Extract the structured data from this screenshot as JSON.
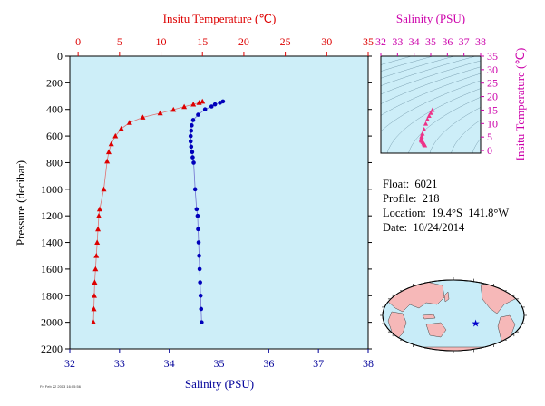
{
  "chart_data": [
    {
      "type": "scatter",
      "name": "profile",
      "ylabel": "Pressure (decibar)",
      "y_ticks": [
        0,
        200,
        400,
        600,
        800,
        1000,
        1200,
        1400,
        1600,
        1800,
        2000,
        2200
      ],
      "ylim": [
        2200,
        0
      ],
      "y_inverted": true,
      "temperature_axis": {
        "label": "Insitu Temperature (℃)",
        "position": "top",
        "color": "#dd0000",
        "ticks": [
          0,
          5,
          10,
          15,
          20,
          25,
          30,
          35
        ],
        "lim": [
          -1,
          35
        ]
      },
      "salinity_axis": {
        "label": "Salinity (PSU)",
        "position": "bottom",
        "color": "#000099",
        "ticks": [
          32,
          33,
          34,
          35,
          36,
          37,
          38
        ],
        "lim": [
          32,
          38
        ]
      },
      "background": "#cdeef8",
      "temperature_series": {
        "color": "#dd0000",
        "marker": "triangle",
        "points": [
          [
            15.0,
            340
          ],
          [
            14.6,
            350
          ],
          [
            13.9,
            362
          ],
          [
            12.8,
            380
          ],
          [
            11.5,
            402
          ],
          [
            9.9,
            428
          ],
          [
            7.8,
            460
          ],
          [
            6.2,
            500
          ],
          [
            5.2,
            545
          ],
          [
            4.5,
            600
          ],
          [
            4.0,
            660
          ],
          [
            3.7,
            720
          ],
          [
            3.5,
            790
          ],
          [
            3.1,
            1000
          ],
          [
            2.6,
            1150
          ],
          [
            2.5,
            1200
          ],
          [
            2.4,
            1300
          ],
          [
            2.3,
            1400
          ],
          [
            2.2,
            1500
          ],
          [
            2.1,
            1600
          ],
          [
            2.0,
            1700
          ],
          [
            1.95,
            1800
          ],
          [
            1.9,
            1900
          ],
          [
            1.85,
            2000
          ]
        ]
      },
      "salinity_series": {
        "color": "#0000bb",
        "marker": "circle",
        "points": [
          [
            35.08,
            340
          ],
          [
            35.02,
            350
          ],
          [
            34.92,
            362
          ],
          [
            34.85,
            378
          ],
          [
            34.72,
            400
          ],
          [
            34.58,
            440
          ],
          [
            34.48,
            480
          ],
          [
            34.45,
            520
          ],
          [
            34.44,
            560
          ],
          [
            34.43,
            600
          ],
          [
            34.43,
            640
          ],
          [
            34.44,
            680
          ],
          [
            34.46,
            720
          ],
          [
            34.47,
            760
          ],
          [
            34.49,
            800
          ],
          [
            34.52,
            1000
          ],
          [
            34.55,
            1150
          ],
          [
            34.57,
            1200
          ],
          [
            34.58,
            1300
          ],
          [
            34.59,
            1400
          ],
          [
            34.6,
            1500
          ],
          [
            34.61,
            1600
          ],
          [
            34.62,
            1700
          ],
          [
            34.63,
            1800
          ],
          [
            34.64,
            1900
          ],
          [
            34.65,
            2000
          ]
        ]
      }
    },
    {
      "type": "scatter",
      "name": "ts-diagram",
      "xlabel": "Salinity (PSU)",
      "ylabel": "Insitu Temperature (℃)",
      "color": "#cc00aa",
      "x_ticks": [
        32,
        33,
        34,
        35,
        36,
        37,
        38
      ],
      "y_ticks": [
        0,
        5,
        10,
        15,
        20,
        25,
        30,
        35
      ],
      "xlim": [
        32,
        38
      ],
      "ylim": [
        -1,
        35
      ],
      "grid": "density contours",
      "points": [
        [
          35.1,
          15.0
        ],
        [
          35.0,
          13.9
        ],
        [
          34.9,
          12.8
        ],
        [
          34.8,
          11.5
        ],
        [
          34.7,
          9.9
        ],
        [
          34.6,
          7.8
        ],
        [
          34.5,
          6.2
        ],
        [
          34.45,
          5.2
        ],
        [
          34.44,
          4.5
        ],
        [
          34.43,
          4.0
        ],
        [
          34.44,
          3.7
        ],
        [
          34.46,
          3.5
        ],
        [
          34.52,
          3.1
        ],
        [
          34.57,
          2.6
        ],
        [
          34.6,
          2.3
        ],
        [
          34.63,
          2.0
        ],
        [
          34.65,
          1.85
        ]
      ]
    }
  ],
  "float_info": {
    "float": "Float:  6021",
    "profile": "Profile:  218",
    "location": "Location:  19.4°S  141.8°W",
    "date": "Date:  10/24/2014"
  },
  "map": {
    "ocean_color": "#c8ecf8",
    "land_color": "#f6b8b8",
    "marker_color": "#0000cc",
    "marker_lat": -19.4,
    "marker_lon": -141.8
  },
  "footer_stamp": "Fri Feb 22 2013 16:05:56"
}
